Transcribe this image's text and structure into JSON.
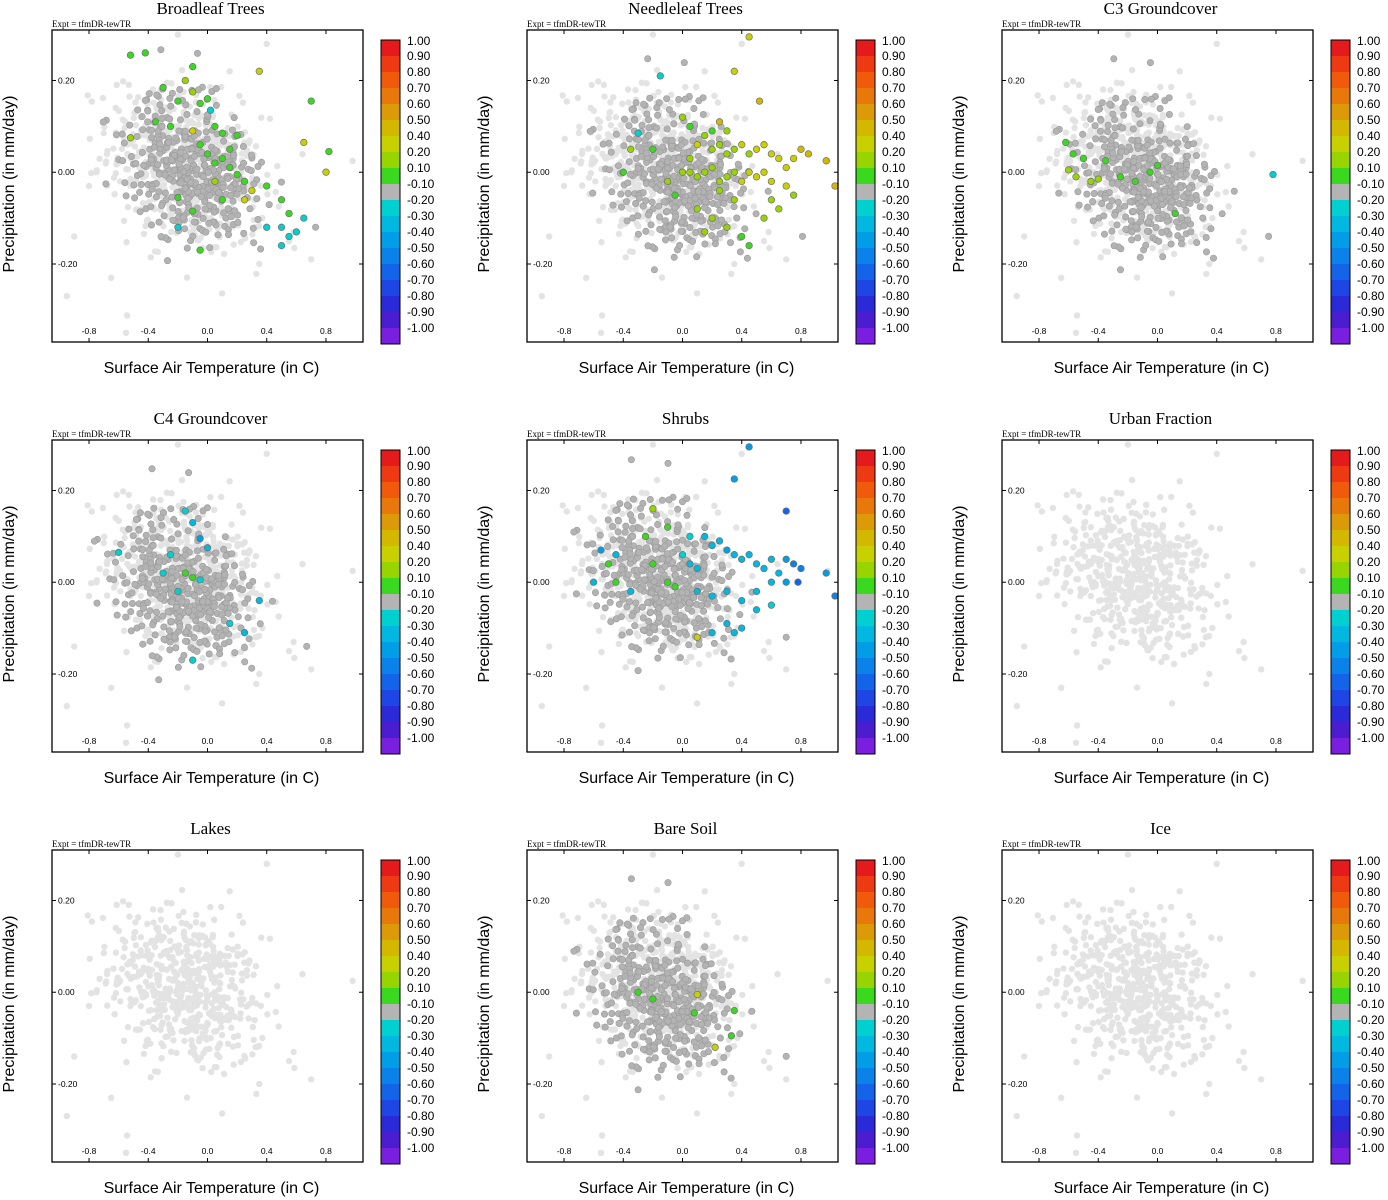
{
  "chart_data": {
    "type": "scatter",
    "expt_label": "Expt = tfmDR-tewTR",
    "xlabel": "Surface Air Temperature (in C)",
    "ylabel": "Precipitation (in mm/day)",
    "xlim": [
      -1.05,
      1.05
    ],
    "ylim": [
      -0.37,
      0.31
    ],
    "xticks": [
      -0.8,
      -0.4,
      0.0,
      0.4,
      0.8
    ],
    "xtick_labels": [
      "-0.8",
      "-0.4",
      "0.0",
      "0.4",
      "0.8"
    ],
    "yticks": [
      0.2,
      0.0,
      -0.2
    ],
    "ytick_labels": [
      "0.20",
      "0.00",
      "-0.20"
    ],
    "colorbar": {
      "labels": [
        "1.00",
        "0.90",
        "0.80",
        "0.70",
        "0.60",
        "0.50",
        "0.40",
        "0.20",
        "0.10",
        "-0.10",
        "-0.20",
        "-0.30",
        "-0.40",
        "-0.50",
        "-0.60",
        "-0.70",
        "-0.80",
        "-0.90",
        "-1.00"
      ],
      "colors": [
        "#e41a1c",
        "#ee3a12",
        "#f05a0a",
        "#e8780a",
        "#dd9a08",
        "#d4b800",
        "#c8d000",
        "#98d400",
        "#3ad81e",
        "#b4b4b4",
        "#00d0d0",
        "#00b8e0",
        "#009ee6",
        "#0a82ea",
        "#1464ea",
        "#1e46e4",
        "#2a2ad8",
        "#4a1ed0",
        "#7a1ee0"
      ]
    },
    "panels": [
      {
        "title": "Broadleaf Trees",
        "points": [
          {
            "x": -0.52,
            "y": 0.255,
            "c": 0.1
          },
          {
            "x": -0.42,
            "y": 0.26,
            "c": 0.15
          },
          {
            "x": -0.3,
            "y": 0.185,
            "c": 0.1
          },
          {
            "x": -0.15,
            "y": 0.2,
            "c": 0.2
          },
          {
            "x": -0.1,
            "y": 0.23,
            "c": 0.1
          },
          {
            "x": -0.1,
            "y": 0.175,
            "c": 0.2
          },
          {
            "x": -0.2,
            "y": 0.155,
            "c": 0.1
          },
          {
            "x": -0.05,
            "y": 0.15,
            "c": 0.1
          },
          {
            "x": 0.0,
            "y": 0.16,
            "c": 0.1
          },
          {
            "x": 0.02,
            "y": 0.135,
            "c": -0.2
          },
          {
            "x": -0.35,
            "y": 0.11,
            "c": 0.1
          },
          {
            "x": -0.25,
            "y": 0.1,
            "c": 0.1
          },
          {
            "x": -0.1,
            "y": 0.09,
            "c": 0.4
          },
          {
            "x": 0.05,
            "y": 0.1,
            "c": 0.1
          },
          {
            "x": 0.1,
            "y": 0.085,
            "c": 0.1
          },
          {
            "x": 0.2,
            "y": 0.08,
            "c": 0.1
          },
          {
            "x": 0.35,
            "y": 0.22,
            "c": 0.4
          },
          {
            "x": 0.7,
            "y": 0.155,
            "c": 0.1
          },
          {
            "x": 0.65,
            "y": 0.065,
            "c": 0.4
          },
          {
            "x": 0.82,
            "y": 0.045,
            "c": 0.1
          },
          {
            "x": 0.8,
            "y": 0.0,
            "c": 0.4
          },
          {
            "x": -0.52,
            "y": 0.075,
            "c": 0.2
          },
          {
            "x": -0.05,
            "y": 0.06,
            "c": 0.1
          },
          {
            "x": 0.0,
            "y": 0.04,
            "c": 0.1
          },
          {
            "x": 0.05,
            "y": 0.02,
            "c": 0.1
          },
          {
            "x": 0.1,
            "y": 0.03,
            "c": 0.1
          },
          {
            "x": 0.15,
            "y": 0.01,
            "c": 0.1
          },
          {
            "x": 0.2,
            "y": -0.005,
            "c": 0.1
          },
          {
            "x": 0.25,
            "y": -0.02,
            "c": 0.1
          },
          {
            "x": 0.3,
            "y": -0.04,
            "c": 0.4
          },
          {
            "x": 0.25,
            "y": -0.06,
            "c": 0.4
          },
          {
            "x": 0.4,
            "y": -0.03,
            "c": 0.1
          },
          {
            "x": 0.5,
            "y": -0.06,
            "c": 0.1
          },
          {
            "x": 0.55,
            "y": -0.09,
            "c": 0.1
          },
          {
            "x": 0.65,
            "y": -0.1,
            "c": -0.2
          },
          {
            "x": 0.5,
            "y": -0.12,
            "c": -0.2
          },
          {
            "x": 0.6,
            "y": -0.13,
            "c": -0.2
          },
          {
            "x": 0.55,
            "y": -0.14,
            "c": -0.2
          },
          {
            "x": 0.5,
            "y": -0.16,
            "c": -0.2
          },
          {
            "x": 0.4,
            "y": -0.12,
            "c": -0.2
          },
          {
            "x": -0.2,
            "y": -0.055,
            "c": 0.1
          },
          {
            "x": -0.1,
            "y": -0.085,
            "c": 0.1
          },
          {
            "x": -0.2,
            "y": -0.12,
            "c": -0.2
          },
          {
            "x": -0.05,
            "y": -0.17,
            "c": 0.1
          },
          {
            "x": 0.1,
            "y": -0.06,
            "c": 0.1
          },
          {
            "x": 0.05,
            "y": -0.02,
            "c": 0.2
          },
          {
            "x": 0.15,
            "y": 0.05,
            "c": 0.1
          }
        ]
      },
      {
        "title": "Needleleaf Trees",
        "points": [
          {
            "x": -0.15,
            "y": 0.21,
            "c": -0.2
          },
          {
            "x": 0.35,
            "y": 0.22,
            "c": 0.4
          },
          {
            "x": 0.45,
            "y": 0.295,
            "c": 0.4
          },
          {
            "x": 0.52,
            "y": 0.155,
            "c": 0.5
          },
          {
            "x": -0.3,
            "y": 0.085,
            "c": -0.2
          },
          {
            "x": -0.35,
            "y": 0.05,
            "c": 0.2
          },
          {
            "x": -0.4,
            "y": 0.0,
            "c": 0.1
          },
          {
            "x": 0.0,
            "y": 0.12,
            "c": 0.3
          },
          {
            "x": 0.05,
            "y": 0.1,
            "c": 0.1
          },
          {
            "x": 0.1,
            "y": 0.06,
            "c": 0.4
          },
          {
            "x": 0.15,
            "y": 0.08,
            "c": 0.2
          },
          {
            "x": 0.2,
            "y": 0.05,
            "c": 0.2
          },
          {
            "x": 0.25,
            "y": 0.06,
            "c": 0.2
          },
          {
            "x": 0.3,
            "y": 0.04,
            "c": 0.2
          },
          {
            "x": 0.35,
            "y": 0.05,
            "c": 0.3
          },
          {
            "x": 0.4,
            "y": 0.06,
            "c": 0.4
          },
          {
            "x": 0.45,
            "y": 0.04,
            "c": 0.3
          },
          {
            "x": 0.5,
            "y": 0.05,
            "c": 0.4
          },
          {
            "x": 0.55,
            "y": 0.06,
            "c": 0.4
          },
          {
            "x": 0.6,
            "y": 0.04,
            "c": 0.4
          },
          {
            "x": 0.65,
            "y": 0.03,
            "c": 0.4
          },
          {
            "x": 0.7,
            "y": 0.01,
            "c": 0.4
          },
          {
            "x": 0.75,
            "y": 0.03,
            "c": 0.4
          },
          {
            "x": 0.8,
            "y": 0.05,
            "c": 0.5
          },
          {
            "x": 0.85,
            "y": 0.04,
            "c": 0.5
          },
          {
            "x": 0.97,
            "y": 0.025,
            "c": 0.5
          },
          {
            "x": 1.03,
            "y": -0.03,
            "c": 0.5
          },
          {
            "x": 0.0,
            "y": 0.0,
            "c": 0.2
          },
          {
            "x": 0.05,
            "y": 0.0,
            "c": 0.2
          },
          {
            "x": 0.1,
            "y": -0.01,
            "c": 0.2
          },
          {
            "x": 0.15,
            "y": 0.0,
            "c": 0.3
          },
          {
            "x": 0.2,
            "y": 0.01,
            "c": 0.3
          },
          {
            "x": 0.25,
            "y": -0.02,
            "c": 0.3
          },
          {
            "x": 0.3,
            "y": -0.01,
            "c": 0.3
          },
          {
            "x": 0.35,
            "y": 0.0,
            "c": 0.3
          },
          {
            "x": 0.4,
            "y": -0.02,
            "c": 0.4
          },
          {
            "x": 0.45,
            "y": 0.0,
            "c": 0.4
          },
          {
            "x": 0.5,
            "y": -0.01,
            "c": 0.4
          },
          {
            "x": 0.55,
            "y": 0.0,
            "c": 0.4
          },
          {
            "x": 0.6,
            "y": -0.02,
            "c": 0.4
          },
          {
            "x": -0.1,
            "y": -0.02,
            "c": 0.2
          },
          {
            "x": -0.05,
            "y": -0.05,
            "c": 0.1
          },
          {
            "x": 0.1,
            "y": -0.08,
            "c": 0.2
          },
          {
            "x": 0.2,
            "y": -0.1,
            "c": 0.2
          },
          {
            "x": 0.3,
            "y": -0.12,
            "c": 0.2
          },
          {
            "x": 0.4,
            "y": -0.14,
            "c": 0.1
          },
          {
            "x": 0.45,
            "y": -0.16,
            "c": 0.1
          },
          {
            "x": 0.55,
            "y": -0.1,
            "c": 0.2
          },
          {
            "x": 0.65,
            "y": -0.08,
            "c": 0.2
          },
          {
            "x": 0.35,
            "y": -0.06,
            "c": 0.2
          },
          {
            "x": 0.25,
            "y": -0.04,
            "c": 0.2
          },
          {
            "x": 0.15,
            "y": -0.13,
            "c": 0.3
          },
          {
            "x": 0.05,
            "y": 0.03,
            "c": 0.2
          },
          {
            "x": 0.2,
            "y": 0.09,
            "c": 0.1
          },
          {
            "x": 0.25,
            "y": 0.11,
            "c": 0.5
          },
          {
            "x": 0.3,
            "y": 0.09,
            "c": 0.3
          },
          {
            "x": -0.2,
            "y": 0.05,
            "c": 0.1
          },
          {
            "x": 0.7,
            "y": -0.03,
            "c": 0.4
          },
          {
            "x": 0.75,
            "y": -0.05,
            "c": 0.3
          },
          {
            "x": 0.6,
            "y": -0.06,
            "c": 0.3
          }
        ]
      },
      {
        "title": "C3 Groundcover",
        "points": [
          {
            "x": -0.62,
            "y": 0.065,
            "c": 0.1
          },
          {
            "x": -0.57,
            "y": 0.04,
            "c": 0.1
          },
          {
            "x": -0.5,
            "y": 0.03,
            "c": 0.1
          },
          {
            "x": -0.6,
            "y": 0.005,
            "c": 0.3
          },
          {
            "x": -0.55,
            "y": -0.01,
            "c": 0.3
          },
          {
            "x": -0.45,
            "y": -0.02,
            "c": 0.3
          },
          {
            "x": -0.35,
            "y": 0.025,
            "c": 0.1
          },
          {
            "x": -0.25,
            "y": -0.01,
            "c": 0.1
          },
          {
            "x": -0.15,
            "y": -0.02,
            "c": 0.1
          },
          {
            "x": -0.05,
            "y": 0.0,
            "c": 0.1
          },
          {
            "x": 0.0,
            "y": 0.015,
            "c": 0.1
          },
          {
            "x": 0.12,
            "y": -0.09,
            "c": 0.1
          },
          {
            "x": 0.78,
            "y": -0.005,
            "c": -0.2
          },
          {
            "x": -0.4,
            "y": -0.015,
            "c": 0.2
          }
        ]
      },
      {
        "title": "C4 Groundcover",
        "points": [
          {
            "x": -0.6,
            "y": 0.065,
            "c": -0.2
          },
          {
            "x": -0.15,
            "y": 0.155,
            "c": -0.2
          },
          {
            "x": -0.1,
            "y": 0.13,
            "c": -0.3
          },
          {
            "x": -0.05,
            "y": 0.095,
            "c": -0.4
          },
          {
            "x": 0.0,
            "y": 0.075,
            "c": -0.3
          },
          {
            "x": -0.3,
            "y": 0.02,
            "c": -0.2
          },
          {
            "x": -0.15,
            "y": 0.02,
            "c": 0.1
          },
          {
            "x": -0.1,
            "y": 0.01,
            "c": 0.1
          },
          {
            "x": -0.05,
            "y": 0.005,
            "c": -0.2
          },
          {
            "x": -0.2,
            "y": -0.02,
            "c": -0.2
          },
          {
            "x": 0.35,
            "y": -0.04,
            "c": -0.3
          },
          {
            "x": 0.15,
            "y": -0.09,
            "c": -0.2
          },
          {
            "x": -0.1,
            "y": -0.17,
            "c": -0.2
          },
          {
            "x": 0.25,
            "y": -0.11,
            "c": -0.3
          },
          {
            "x": -0.25,
            "y": 0.06,
            "c": -0.2
          }
        ]
      },
      {
        "title": "Shrubs",
        "points": [
          {
            "x": 0.45,
            "y": 0.295,
            "c": -0.4
          },
          {
            "x": 0.35,
            "y": 0.225,
            "c": -0.4
          },
          {
            "x": 0.7,
            "y": 0.155,
            "c": -0.6
          },
          {
            "x": -0.2,
            "y": 0.16,
            "c": 0.3
          },
          {
            "x": -0.55,
            "y": 0.07,
            "c": -0.4
          },
          {
            "x": -0.45,
            "y": 0.06,
            "c": -0.3
          },
          {
            "x": -0.5,
            "y": 0.04,
            "c": 0.1
          },
          {
            "x": -0.6,
            "y": 0.0,
            "c": -0.3
          },
          {
            "x": -0.45,
            "y": 0.0,
            "c": 0.1
          },
          {
            "x": -0.35,
            "y": -0.02,
            "c": -0.3
          },
          {
            "x": -0.1,
            "y": 0.0,
            "c": 0.1
          },
          {
            "x": -0.05,
            "y": -0.01,
            "c": 0.1
          },
          {
            "x": -0.2,
            "y": 0.04,
            "c": 0.1
          },
          {
            "x": -0.25,
            "y": 0.1,
            "c": 0.1
          },
          {
            "x": 0.0,
            "y": 0.06,
            "c": -0.2
          },
          {
            "x": 0.05,
            "y": 0.04,
            "c": -0.3
          },
          {
            "x": 0.1,
            "y": 0.03,
            "c": -0.3
          },
          {
            "x": 0.15,
            "y": 0.1,
            "c": -0.3
          },
          {
            "x": 0.2,
            "y": 0.08,
            "c": -0.3
          },
          {
            "x": 0.25,
            "y": 0.09,
            "c": -0.3
          },
          {
            "x": 0.3,
            "y": 0.07,
            "c": -0.4
          },
          {
            "x": 0.35,
            "y": 0.06,
            "c": -0.3
          },
          {
            "x": 0.4,
            "y": 0.05,
            "c": -0.3
          },
          {
            "x": 0.45,
            "y": 0.06,
            "c": -0.3
          },
          {
            "x": 0.5,
            "y": 0.04,
            "c": -0.3
          },
          {
            "x": 0.55,
            "y": 0.03,
            "c": -0.3
          },
          {
            "x": 0.6,
            "y": 0.05,
            "c": -0.3
          },
          {
            "x": 0.65,
            "y": 0.02,
            "c": -0.3
          },
          {
            "x": 0.7,
            "y": 0.0,
            "c": -0.4
          },
          {
            "x": 0.75,
            "y": 0.04,
            "c": -0.5
          },
          {
            "x": 0.78,
            "y": 0.0,
            "c": -0.6
          },
          {
            "x": 0.97,
            "y": 0.02,
            "c": -0.4
          },
          {
            "x": 1.03,
            "y": -0.03,
            "c": -0.5
          },
          {
            "x": 0.1,
            "y": -0.02,
            "c": -0.3
          },
          {
            "x": 0.2,
            "y": -0.03,
            "c": -0.3
          },
          {
            "x": 0.3,
            "y": -0.02,
            "c": -0.3
          },
          {
            "x": 0.4,
            "y": -0.04,
            "c": -0.3
          },
          {
            "x": 0.5,
            "y": -0.06,
            "c": -0.3
          },
          {
            "x": 0.6,
            "y": -0.05,
            "c": -0.2
          },
          {
            "x": 0.3,
            "y": -0.09,
            "c": -0.3
          },
          {
            "x": 0.2,
            "y": -0.11,
            "c": -0.3
          },
          {
            "x": 0.4,
            "y": -0.1,
            "c": -0.3
          },
          {
            "x": 0.1,
            "y": -0.12,
            "c": 0.4
          },
          {
            "x": 0.35,
            "y": -0.11,
            "c": -0.3
          },
          {
            "x": 0.5,
            "y": -0.02,
            "c": -0.3
          },
          {
            "x": 0.6,
            "y": 0.0,
            "c": -0.3
          },
          {
            "x": 0.7,
            "y": 0.05,
            "c": -0.4
          },
          {
            "x": 0.8,
            "y": 0.03,
            "c": -0.5
          },
          {
            "x": -0.1,
            "y": 0.12,
            "c": 0.1
          },
          {
            "x": 0.05,
            "y": 0.1,
            "c": -0.2
          }
        ]
      },
      {
        "title": "Urban Fraction",
        "points": []
      },
      {
        "title": "Lakes",
        "points": []
      },
      {
        "title": "Bare Soil",
        "points": [
          {
            "x": -0.3,
            "y": 0.0,
            "c": 0.1
          },
          {
            "x": -0.2,
            "y": -0.015,
            "c": 0.1
          },
          {
            "x": 0.1,
            "y": -0.005,
            "c": 0.4
          },
          {
            "x": 0.08,
            "y": -0.045,
            "c": 0.1
          },
          {
            "x": 0.35,
            "y": -0.04,
            "c": 0.1
          },
          {
            "x": 0.33,
            "y": -0.095,
            "c": 0.1
          },
          {
            "x": 0.22,
            "y": -0.12,
            "c": 0.4
          }
        ]
      },
      {
        "title": "Ice",
        "points": []
      }
    ]
  }
}
